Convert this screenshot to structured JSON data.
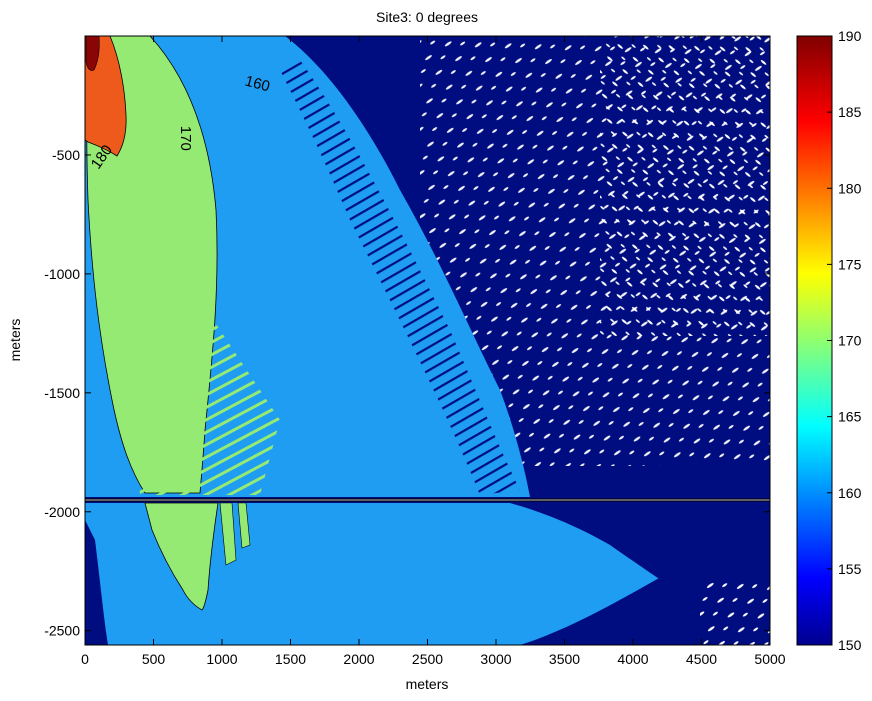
{
  "chart_data": {
    "type": "heatmap",
    "title": "Site3: 0 degrees",
    "xlabel": "meters",
    "ylabel": "meters",
    "xlim": [
      0,
      5000
    ],
    "ylim": [
      -2560,
      0
    ],
    "x_ticks": [
      0,
      500,
      1000,
      1500,
      2000,
      2500,
      3000,
      3500,
      4000,
      4500,
      5000
    ],
    "x_tick_labels": [
      "0",
      "500",
      "1000",
      "1500",
      "2000",
      "2500",
      "3000",
      "3500",
      "4000",
      "4500",
      "5000"
    ],
    "y_ticks": [
      -500,
      -1000,
      -1500,
      -2000,
      -2500
    ],
    "y_tick_labels": [
      "-500",
      "-1000",
      "-1500",
      "-2000",
      "-2500"
    ],
    "colorbar": {
      "range": [
        150,
        190
      ],
      "ticks": [
        150,
        155,
        160,
        165,
        170,
        175,
        180,
        185,
        190
      ],
      "tick_labels": [
        "150",
        "155",
        "160",
        "165",
        "170",
        "175",
        "180",
        "185",
        "190"
      ],
      "colormap": "jet"
    },
    "horizontal_line_y": -1960,
    "contour_labels": [
      {
        "text": "180",
        "x": 150,
        "y": -520,
        "level": 180
      },
      {
        "text": "170",
        "x": 700,
        "y": -430,
        "level": 170
      },
      {
        "text": "160",
        "x": 1250,
        "y": -220,
        "level": 160
      }
    ],
    "regions": [
      {
        "level": 150,
        "color": "#000d80"
      },
      {
        "level": 160,
        "color": "#1e9df2"
      },
      {
        "level": 170,
        "color": "#94ea72"
      },
      {
        "level": 180,
        "color": "#ee5a1c"
      },
      {
        "level": 190,
        "color": "#8a0606"
      }
    ]
  }
}
